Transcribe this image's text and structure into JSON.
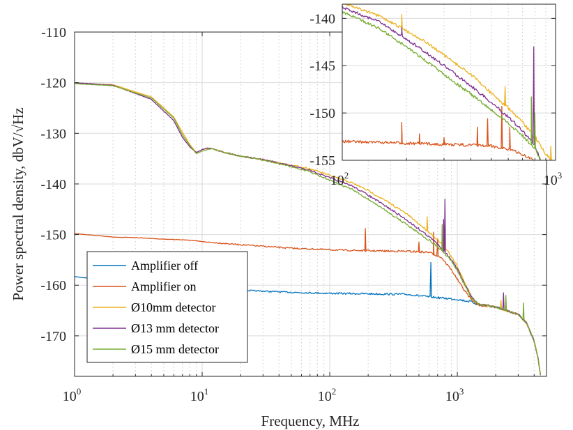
{
  "chart_data": [
    {
      "type": "line",
      "id": "main",
      "xscale": "log",
      "xlim": [
        1,
        5000
      ],
      "ylim": [
        -178,
        -110
      ],
      "xlabel": "Frequency, MHz",
      "ylabel": "Power spectral density, dbV/√Hz",
      "xticks": [
        {
          "base": "10",
          "exp": "0",
          "v": 1
        },
        {
          "base": "10",
          "exp": "1",
          "v": 10
        },
        {
          "base": "10",
          "exp": "2",
          "v": 100
        },
        {
          "base": "10",
          "exp": "3",
          "v": 1000
        }
      ],
      "yticks": [
        -110,
        -120,
        -130,
        -140,
        -150,
        -160,
        -170
      ],
      "grid": true,
      "legend_position": "bottom-left",
      "series": [
        {
          "name": "Amplifier off",
          "color": "#0072bd",
          "points": [
            [
              1,
              -158.3
            ],
            [
              1.5,
              -158.8
            ],
            [
              2,
              -159.2
            ],
            [
              3,
              -159.6
            ],
            [
              5,
              -160.1
            ],
            [
              10,
              -160.6
            ],
            [
              20,
              -161.0
            ],
            [
              50,
              -161.4
            ],
            [
              100,
              -161.6
            ],
            [
              200,
              -161.7
            ],
            [
              400,
              -161.8
            ],
            [
              600,
              -162.3
            ],
            [
              1000,
              -162.8
            ],
            [
              1300,
              -163.3
            ],
            [
              1500,
              -164.0
            ],
            [
              2000,
              -164.3
            ],
            [
              3000,
              -165.8
            ],
            [
              3500,
              -167.5
            ],
            [
              4000,
              -171
            ],
            [
              4300,
              -174.5
            ],
            [
              4500,
              -178
            ]
          ],
          "spikes": [
            [
              620,
              -155.5,
              -162.3
            ]
          ]
        },
        {
          "name": "Amplifier on",
          "color": "#d95319",
          "points": [
            [
              1,
              -149.8
            ],
            [
              1.5,
              -150.2
            ],
            [
              2,
              -150.5
            ],
            [
              3,
              -150.6
            ],
            [
              5,
              -150.9
            ],
            [
              8,
              -151.1
            ],
            [
              10,
              -151.4
            ],
            [
              20,
              -152.0
            ],
            [
              50,
              -152.7
            ],
            [
              100,
              -153.0
            ],
            [
              200,
              -153.2
            ],
            [
              400,
              -153.3
            ],
            [
              600,
              -153.5
            ],
            [
              750,
              -154.5
            ],
            [
              900,
              -157
            ],
            [
              1100,
              -160.5
            ],
            [
              1300,
              -163.0
            ],
            [
              1500,
              -164.0
            ],
            [
              2000,
              -164.3
            ],
            [
              3000,
              -165.8
            ],
            [
              3500,
              -167.5
            ],
            [
              4000,
              -171
            ],
            [
              4300,
              -174.5
            ],
            [
              4500,
              -178
            ]
          ],
          "spikes": [
            [
              190,
              -148.8,
              -153.2
            ],
            [
              500,
              -151.5,
              -153.4
            ],
            [
              650,
              -149.5,
              -153.5
            ],
            [
              700,
              -151,
              -153.5
            ]
          ]
        },
        {
          "name": "Ø10mm detector",
          "color": "#edb120",
          "points": [
            [
              1,
              -120.1
            ],
            [
              2,
              -120.4
            ],
            [
              4,
              -122.8
            ],
            [
              6,
              -126.8
            ],
            [
              7,
              -129.8
            ],
            [
              8,
              -132.2
            ],
            [
              9,
              -133.8
            ],
            [
              10,
              -133.2
            ],
            [
              11,
              -133.0
            ],
            [
              12,
              -133.1
            ],
            [
              13,
              -133.3
            ],
            [
              15,
              -133.8
            ],
            [
              20,
              -134.5
            ],
            [
              30,
              -135.2
            ],
            [
              50,
              -136.3
            ],
            [
              70,
              -137.0
            ],
            [
              100,
              -138.3
            ],
            [
              150,
              -139.8
            ],
            [
              200,
              -141.3
            ],
            [
              300,
              -143.9
            ],
            [
              400,
              -145.9
            ],
            [
              500,
              -147.9
            ],
            [
              600,
              -149.5
            ],
            [
              700,
              -151.0
            ],
            [
              800,
              -152.6
            ],
            [
              900,
              -154.3
            ],
            [
              1000,
              -156.3
            ],
            [
              1100,
              -158.6
            ],
            [
              1200,
              -160.6
            ],
            [
              1300,
              -162.3
            ],
            [
              1400,
              -163.3
            ],
            [
              1500,
              -163.8
            ],
            [
              2000,
              -164.3
            ],
            [
              3000,
              -165.8
            ],
            [
              3500,
              -167.5
            ],
            [
              4000,
              -171
            ],
            [
              4300,
              -174.5
            ],
            [
              4500,
              -178
            ]
          ],
          "spikes": [
            [
              580,
              -146.5,
              -149.3
            ],
            [
              800,
              -148.5,
              -152.6
            ],
            [
              2200,
              -163,
              -164.3
            ]
          ]
        },
        {
          "name": "Ø13 mm detector",
          "color": "#7e2f8e",
          "points": [
            [
              1,
              -120.0
            ],
            [
              2,
              -120.5
            ],
            [
              4,
              -123.3
            ],
            [
              6,
              -127.5
            ],
            [
              7,
              -130.8
            ],
            [
              8,
              -132.7
            ],
            [
              9,
              -133.8
            ],
            [
              10,
              -133.2
            ],
            [
              11,
              -132.9
            ],
            [
              12,
              -133.0
            ],
            [
              13,
              -133.3
            ],
            [
              15,
              -133.8
            ],
            [
              20,
              -134.5
            ],
            [
              30,
              -135.2
            ],
            [
              50,
              -136.4
            ],
            [
              70,
              -137.3
            ],
            [
              100,
              -138.8
            ],
            [
              150,
              -140.4
            ],
            [
              200,
              -142.2
            ],
            [
              300,
              -145.0
            ],
            [
              400,
              -147.1
            ],
            [
              500,
              -148.9
            ],
            [
              600,
              -150.4
            ],
            [
              700,
              -151.9
            ],
            [
              800,
              -153.4
            ],
            [
              900,
              -155.0
            ],
            [
              1000,
              -156.8
            ],
            [
              1100,
              -159.0
            ],
            [
              1200,
              -160.8
            ],
            [
              1300,
              -162.4
            ],
            [
              1400,
              -163.3
            ],
            [
              1500,
              -163.8
            ],
            [
              2000,
              -164.3
            ],
            [
              3000,
              -165.8
            ],
            [
              3500,
              -167.5
            ],
            [
              4000,
              -171
            ],
            [
              4300,
              -174.5
            ],
            [
              4500,
              -178
            ]
          ],
          "spikes": [
            [
              800,
              -143.0,
              -153.4
            ],
            [
              780,
              -147.0,
              -153.2
            ],
            [
              2300,
              -161.5,
              -164.3
            ]
          ]
        },
        {
          "name": "Ø15 mm detector",
          "color": "#77ac30",
          "points": [
            [
              1,
              -120.2
            ],
            [
              2,
              -120.6
            ],
            [
              4,
              -123.0
            ],
            [
              6,
              -127.0
            ],
            [
              7,
              -130.3
            ],
            [
              8,
              -132.4
            ],
            [
              9,
              -134.0
            ],
            [
              10,
              -133.5
            ],
            [
              11,
              -133.2
            ],
            [
              12,
              -133.0
            ],
            [
              13,
              -133.3
            ],
            [
              15,
              -133.8
            ],
            [
              20,
              -134.5
            ],
            [
              30,
              -135.3
            ],
            [
              50,
              -136.6
            ],
            [
              70,
              -137.6
            ],
            [
              100,
              -139.3
            ],
            [
              150,
              -141.1
            ],
            [
              200,
              -143.0
            ],
            [
              300,
              -145.9
            ],
            [
              400,
              -148.0
            ],
            [
              500,
              -149.7
            ],
            [
              600,
              -151.1
            ],
            [
              700,
              -152.4
            ],
            [
              800,
              -153.8
            ],
            [
              900,
              -155.3
            ],
            [
              1000,
              -157.1
            ],
            [
              1100,
              -159.2
            ],
            [
              1200,
              -161.0
            ],
            [
              1300,
              -162.6
            ],
            [
              1400,
              -163.4
            ],
            [
              1500,
              -163.8
            ],
            [
              2000,
              -164.3
            ],
            [
              3000,
              -165.8
            ],
            [
              3500,
              -167.5
            ],
            [
              4000,
              -171
            ],
            [
              4300,
              -174.5
            ],
            [
              4500,
              -178
            ]
          ],
          "spikes": [
            [
              760,
              -148.0,
              -153.5
            ],
            [
              2400,
              -162,
              -164.3
            ],
            [
              3300,
              -163.5,
              -165.5
            ]
          ]
        }
      ]
    },
    {
      "type": "line",
      "id": "inset",
      "xscale": "log",
      "xlim": [
        100,
        1000
      ],
      "ylim": [
        -155,
        -138.5
      ],
      "xticks": [
        {
          "base": "10",
          "exp": "2",
          "v": 100
        },
        {
          "base": "10",
          "exp": "3",
          "v": 1000
        }
      ],
      "yticks": [
        -140,
        -145,
        -150,
        -155
      ],
      "grid": true,
      "series": [
        {
          "name": "Amplifier on",
          "color": "#d95319",
          "points": [
            [
              100,
              -153.0
            ],
            [
              150,
              -153.1
            ],
            [
              200,
              -153.2
            ],
            [
              300,
              -153.3
            ],
            [
              400,
              -153.4
            ],
            [
              500,
              -153.5
            ],
            [
              600,
              -153.8
            ],
            [
              700,
              -154.4
            ],
            [
              800,
              -155
            ]
          ],
          "spikes": [
            [
              190,
              -151.0,
              -153.2
            ],
            [
              230,
              -152.2,
              -153.3
            ],
            [
              300,
              -152.6,
              -153.3
            ],
            [
              430,
              -151.5,
              -153.4
            ],
            [
              480,
              -150.6,
              -153.5
            ],
            [
              560,
              -149.3,
              -153.6
            ],
            [
              610,
              -151.5,
              -153.7
            ]
          ]
        },
        {
          "name": "Ø10mm detector",
          "color": "#edb120",
          "points": [
            [
              100,
              -138.3
            ],
            [
              150,
              -139.8
            ],
            [
              200,
              -141.3
            ],
            [
              250,
              -142.6
            ],
            [
              300,
              -143.9
            ],
            [
              400,
              -145.9
            ],
            [
              500,
              -147.9
            ],
            [
              600,
              -149.5
            ],
            [
              700,
              -151.0
            ],
            [
              800,
              -152.6
            ],
            [
              900,
              -154.3
            ],
            [
              960,
              -155
            ]
          ],
          "spikes": [
            [
              190,
              -139.6,
              -141.2
            ],
            [
              580,
              -147.2,
              -149.3
            ],
            [
              810,
              -152.5,
              -155
            ],
            [
              950,
              -153.5,
              -155
            ]
          ]
        },
        {
          "name": "Ø13 mm detector",
          "color": "#7e2f8e",
          "points": [
            [
              100,
              -138.8
            ],
            [
              150,
              -140.4
            ],
            [
              200,
              -142.2
            ],
            [
              250,
              -143.7
            ],
            [
              300,
              -145.0
            ],
            [
              400,
              -147.1
            ],
            [
              500,
              -148.9
            ],
            [
              600,
              -150.4
            ],
            [
              700,
              -151.9
            ],
            [
              800,
              -153.4
            ],
            [
              850,
              -155
            ]
          ],
          "spikes": [
            [
              190,
              -141.0,
              -142.1
            ],
            [
              790,
              -143.0,
              -153.3
            ],
            [
              770,
              -148.5,
              -153.0
            ]
          ]
        },
        {
          "name": "Ø15 mm detector",
          "color": "#77ac30",
          "points": [
            [
              100,
              -139.3
            ],
            [
              150,
              -141.1
            ],
            [
              200,
              -143.0
            ],
            [
              250,
              -144.6
            ],
            [
              300,
              -145.9
            ],
            [
              400,
              -148.0
            ],
            [
              500,
              -149.7
            ],
            [
              600,
              -151.1
            ],
            [
              700,
              -152.4
            ],
            [
              800,
              -153.8
            ],
            [
              850,
              -155
            ]
          ],
          "spikes": [
            [
              770,
              -148.3,
              -153.6
            ],
            [
              800,
              -150,
              -154
            ]
          ]
        }
      ]
    }
  ]
}
